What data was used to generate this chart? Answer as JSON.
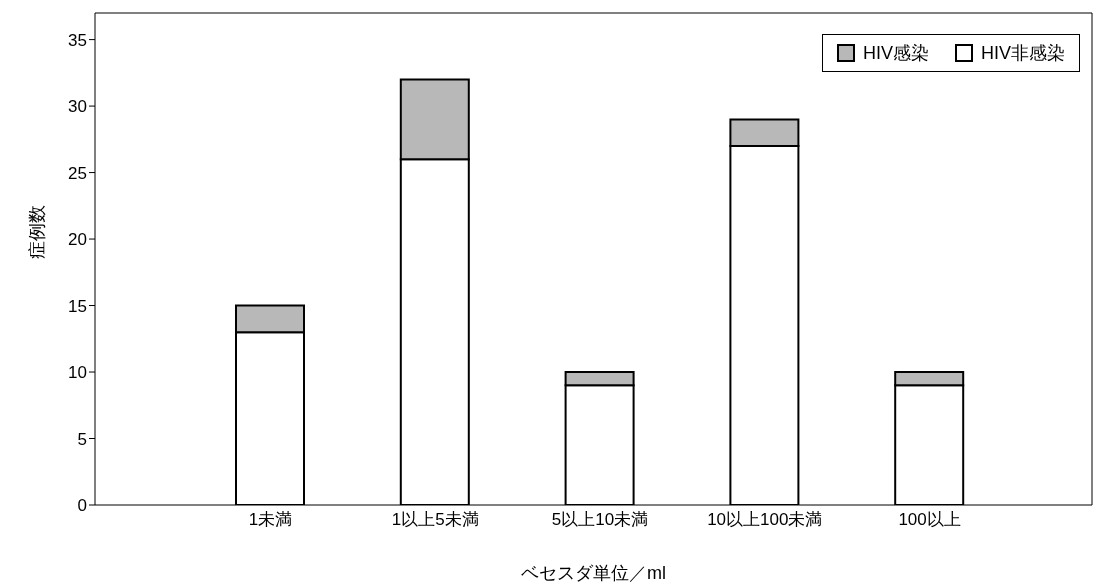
{
  "chart_data": {
    "type": "bar",
    "xlabel": "ベセスダ単位／ml",
    "ylabel": "症例数",
    "categories": [
      "1未満",
      "1以上5未満",
      "5以上10未満",
      "10以上100未満",
      "100以上"
    ],
    "series": [
      {
        "name": "HIV非感染",
        "color": "#ffffff",
        "values": [
          13,
          26,
          9,
          27,
          9
        ]
      },
      {
        "name": "HIV感染",
        "color": "#b8b8b8",
        "values": [
          2,
          6,
          1,
          2,
          1
        ]
      }
    ],
    "stacked": true,
    "ylim": [
      0,
      37
    ],
    "yticks": [
      0,
      5,
      10,
      15,
      20,
      25,
      30,
      35
    ],
    "legend": "top right"
  }
}
